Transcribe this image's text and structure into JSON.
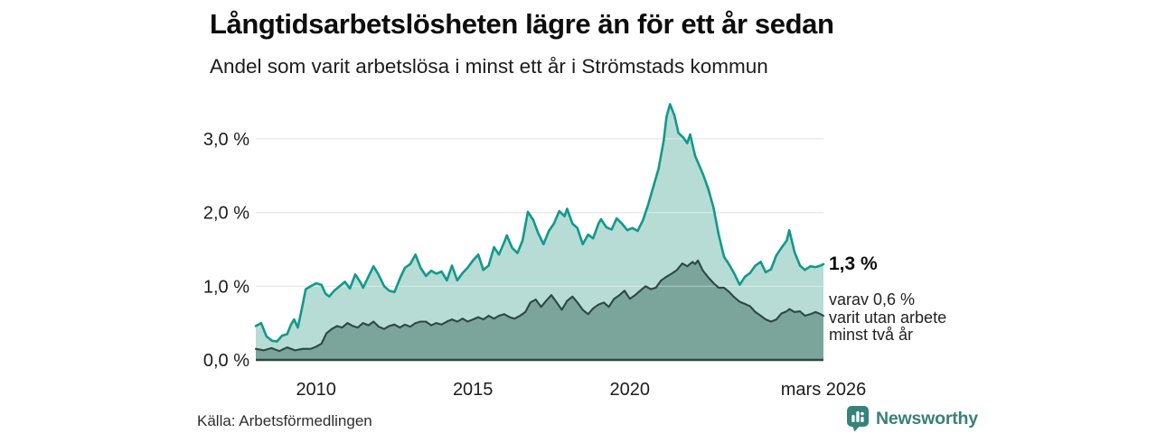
{
  "title": "Långtidsarbetslösheten lägre än för ett år sedan",
  "subtitle": "Andel som varit arbetslösa i minst ett år i Strömstads kommun",
  "source": "Källa: Arbetsförmedlingen",
  "branding": {
    "name": "Newsworthy",
    "icon_color": "#35837b",
    "text_color": "#3a7f79"
  },
  "annotations": {
    "latest_value": "1,3 %",
    "secondary_line1": "varav 0,6 %",
    "secondary_line2": "varit utan arbete",
    "secondary_line3": "minst två år"
  },
  "colors": {
    "long_term_line": "#11998a",
    "long_term_fill": "#b7dcd5",
    "very_long_term_line": "#2c4843",
    "very_long_term_fill": "#7ba49b",
    "gridline": "#d9d9d9",
    "gridline_over_fill": "rgba(255,255,255,0.4)",
    "axis_line": "#2c4843",
    "tick_text": "#1c1c1c"
  },
  "chart_data": {
    "type": "area",
    "title": "Långtidsarbetslösheten lägre än för ett år sedan",
    "subtitle": "Andel som varit arbetslösa i minst ett år i Strömstads kommun",
    "unit": "%",
    "xlim": [
      2008.08,
      2026.17
    ],
    "ylim": [
      0,
      3.55
    ],
    "grid": true,
    "legend_position": "annotated-right",
    "yticks": [
      {
        "value": 0,
        "label": "0,0 %"
      },
      {
        "value": 1,
        "label": "1,0 %"
      },
      {
        "value": 2,
        "label": "2,0 %"
      },
      {
        "value": 3,
        "label": "3,0 %"
      }
    ],
    "xticks": [
      {
        "value": 2010,
        "label": "2010"
      },
      {
        "value": 2015,
        "label": "2015"
      },
      {
        "value": 2020,
        "label": "2020"
      },
      {
        "value": 2026.17,
        "label": "mars 2026"
      }
    ],
    "series": [
      {
        "name": "Andel som varit arbetslösa i minst ett år",
        "latest_label": "1,3 %",
        "points": [
          [
            2008.08,
            0.46
          ],
          [
            2008.25,
            0.5
          ],
          [
            2008.42,
            0.32
          ],
          [
            2008.6,
            0.26
          ],
          [
            2008.75,
            0.25
          ],
          [
            2008.92,
            0.33
          ],
          [
            2009.08,
            0.35
          ],
          [
            2009.2,
            0.48
          ],
          [
            2009.3,
            0.55
          ],
          [
            2009.42,
            0.44
          ],
          [
            2009.55,
            0.7
          ],
          [
            2009.67,
            0.96
          ],
          [
            2009.83,
            1.0
          ],
          [
            2010.0,
            1.04
          ],
          [
            2010.17,
            1.02
          ],
          [
            2010.3,
            0.9
          ],
          [
            2010.42,
            0.86
          ],
          [
            2010.58,
            0.94
          ],
          [
            2010.75,
            1.0
          ],
          [
            2010.92,
            1.06
          ],
          [
            2011.08,
            0.97
          ],
          [
            2011.25,
            1.16
          ],
          [
            2011.42,
            1.05
          ],
          [
            2011.5,
            0.98
          ],
          [
            2011.67,
            1.13
          ],
          [
            2011.83,
            1.27
          ],
          [
            2012.0,
            1.15
          ],
          [
            2012.17,
            1.0
          ],
          [
            2012.33,
            0.94
          ],
          [
            2012.5,
            0.92
          ],
          [
            2012.67,
            1.1
          ],
          [
            2012.83,
            1.25
          ],
          [
            2013.0,
            1.3
          ],
          [
            2013.17,
            1.43
          ],
          [
            2013.33,
            1.25
          ],
          [
            2013.5,
            1.14
          ],
          [
            2013.67,
            1.21
          ],
          [
            2013.83,
            1.17
          ],
          [
            2014.0,
            1.2
          ],
          [
            2014.17,
            1.08
          ],
          [
            2014.33,
            1.28
          ],
          [
            2014.5,
            1.08
          ],
          [
            2014.67,
            1.18
          ],
          [
            2014.83,
            1.25
          ],
          [
            2015.0,
            1.35
          ],
          [
            2015.17,
            1.43
          ],
          [
            2015.33,
            1.22
          ],
          [
            2015.5,
            1.28
          ],
          [
            2015.67,
            1.53
          ],
          [
            2015.83,
            1.43
          ],
          [
            2016.0,
            1.6
          ],
          [
            2016.08,
            1.69
          ],
          [
            2016.25,
            1.52
          ],
          [
            2016.42,
            1.45
          ],
          [
            2016.58,
            1.62
          ],
          [
            2016.75,
            2.01
          ],
          [
            2016.92,
            1.9
          ],
          [
            2017.08,
            1.72
          ],
          [
            2017.25,
            1.57
          ],
          [
            2017.42,
            1.75
          ],
          [
            2017.58,
            1.85
          ],
          [
            2017.75,
            2.02
          ],
          [
            2017.92,
            1.95
          ],
          [
            2018.0,
            2.05
          ],
          [
            2018.17,
            1.85
          ],
          [
            2018.33,
            1.79
          ],
          [
            2018.5,
            1.57
          ],
          [
            2018.67,
            1.7
          ],
          [
            2018.83,
            1.65
          ],
          [
            2019.0,
            1.85
          ],
          [
            2019.08,
            1.91
          ],
          [
            2019.25,
            1.8
          ],
          [
            2019.42,
            1.77
          ],
          [
            2019.58,
            1.92
          ],
          [
            2019.75,
            1.85
          ],
          [
            2019.92,
            1.76
          ],
          [
            2020.08,
            1.79
          ],
          [
            2020.25,
            1.75
          ],
          [
            2020.42,
            1.9
          ],
          [
            2020.58,
            2.1
          ],
          [
            2020.75,
            2.35
          ],
          [
            2020.92,
            2.6
          ],
          [
            2021.08,
            2.98
          ],
          [
            2021.17,
            3.3
          ],
          [
            2021.28,
            3.47
          ],
          [
            2021.42,
            3.32
          ],
          [
            2021.55,
            3.08
          ],
          [
            2021.7,
            3.02
          ],
          [
            2021.83,
            2.94
          ],
          [
            2021.92,
            3.06
          ],
          [
            2022.08,
            2.77
          ],
          [
            2022.2,
            2.65
          ],
          [
            2022.33,
            2.52
          ],
          [
            2022.5,
            2.32
          ],
          [
            2022.67,
            2.06
          ],
          [
            2022.83,
            1.7
          ],
          [
            2023.0,
            1.4
          ],
          [
            2023.17,
            1.29
          ],
          [
            2023.33,
            1.17
          ],
          [
            2023.5,
            1.02
          ],
          [
            2023.67,
            1.13
          ],
          [
            2023.83,
            1.18
          ],
          [
            2024.0,
            1.28
          ],
          [
            2024.17,
            1.33
          ],
          [
            2024.33,
            1.19
          ],
          [
            2024.5,
            1.23
          ],
          [
            2024.67,
            1.42
          ],
          [
            2024.83,
            1.52
          ],
          [
            2025.0,
            1.62
          ],
          [
            2025.08,
            1.76
          ],
          [
            2025.25,
            1.46
          ],
          [
            2025.42,
            1.28
          ],
          [
            2025.58,
            1.22
          ],
          [
            2025.75,
            1.27
          ],
          [
            2025.92,
            1.26
          ],
          [
            2026.08,
            1.28
          ],
          [
            2026.17,
            1.3
          ]
        ]
      },
      {
        "name": "varav utan arbete minst två år",
        "latest_label": "0,6 %",
        "points": [
          [
            2008.08,
            0.15
          ],
          [
            2008.33,
            0.13
          ],
          [
            2008.58,
            0.16
          ],
          [
            2008.83,
            0.12
          ],
          [
            2009.08,
            0.17
          ],
          [
            2009.33,
            0.13
          ],
          [
            2009.58,
            0.15
          ],
          [
            2009.83,
            0.15
          ],
          [
            2010.0,
            0.18
          ],
          [
            2010.17,
            0.22
          ],
          [
            2010.33,
            0.36
          ],
          [
            2010.5,
            0.42
          ],
          [
            2010.67,
            0.46
          ],
          [
            2010.83,
            0.44
          ],
          [
            2011.0,
            0.5
          ],
          [
            2011.17,
            0.46
          ],
          [
            2011.33,
            0.44
          ],
          [
            2011.5,
            0.5
          ],
          [
            2011.67,
            0.47
          ],
          [
            2011.83,
            0.52
          ],
          [
            2012.0,
            0.45
          ],
          [
            2012.17,
            0.42
          ],
          [
            2012.33,
            0.46
          ],
          [
            2012.5,
            0.48
          ],
          [
            2012.67,
            0.44
          ],
          [
            2012.83,
            0.48
          ],
          [
            2013.0,
            0.45
          ],
          [
            2013.17,
            0.5
          ],
          [
            2013.33,
            0.52
          ],
          [
            2013.5,
            0.52
          ],
          [
            2013.67,
            0.47
          ],
          [
            2013.83,
            0.5
          ],
          [
            2014.0,
            0.48
          ],
          [
            2014.17,
            0.52
          ],
          [
            2014.33,
            0.55
          ],
          [
            2014.5,
            0.52
          ],
          [
            2014.67,
            0.56
          ],
          [
            2014.83,
            0.52
          ],
          [
            2015.0,
            0.55
          ],
          [
            2015.17,
            0.58
          ],
          [
            2015.33,
            0.55
          ],
          [
            2015.5,
            0.6
          ],
          [
            2015.67,
            0.56
          ],
          [
            2015.83,
            0.6
          ],
          [
            2016.0,
            0.62
          ],
          [
            2016.17,
            0.58
          ],
          [
            2016.33,
            0.56
          ],
          [
            2016.5,
            0.6
          ],
          [
            2016.67,
            0.65
          ],
          [
            2016.83,
            0.78
          ],
          [
            2017.0,
            0.82
          ],
          [
            2017.17,
            0.72
          ],
          [
            2017.33,
            0.8
          ],
          [
            2017.5,
            0.88
          ],
          [
            2017.67,
            0.78
          ],
          [
            2017.83,
            0.68
          ],
          [
            2018.0,
            0.8
          ],
          [
            2018.17,
            0.86
          ],
          [
            2018.33,
            0.78
          ],
          [
            2018.5,
            0.68
          ],
          [
            2018.67,
            0.62
          ],
          [
            2018.83,
            0.7
          ],
          [
            2019.0,
            0.75
          ],
          [
            2019.17,
            0.78
          ],
          [
            2019.33,
            0.72
          ],
          [
            2019.5,
            0.83
          ],
          [
            2019.67,
            0.88
          ],
          [
            2019.83,
            0.94
          ],
          [
            2020.0,
            0.83
          ],
          [
            2020.17,
            0.88
          ],
          [
            2020.33,
            0.94
          ],
          [
            2020.5,
            1.0
          ],
          [
            2020.67,
            0.96
          ],
          [
            2020.83,
            0.98
          ],
          [
            2021.0,
            1.08
          ],
          [
            2021.17,
            1.13
          ],
          [
            2021.33,
            1.17
          ],
          [
            2021.5,
            1.22
          ],
          [
            2021.67,
            1.31
          ],
          [
            2021.83,
            1.27
          ],
          [
            2022.0,
            1.33
          ],
          [
            2022.08,
            1.3
          ],
          [
            2022.17,
            1.35
          ],
          [
            2022.33,
            1.21
          ],
          [
            2022.5,
            1.12
          ],
          [
            2022.67,
            1.04
          ],
          [
            2022.83,
            0.98
          ],
          [
            2023.0,
            0.98
          ],
          [
            2023.17,
            0.92
          ],
          [
            2023.33,
            0.85
          ],
          [
            2023.5,
            0.79
          ],
          [
            2023.67,
            0.76
          ],
          [
            2023.83,
            0.73
          ],
          [
            2024.0,
            0.65
          ],
          [
            2024.17,
            0.6
          ],
          [
            2024.33,
            0.55
          ],
          [
            2024.5,
            0.52
          ],
          [
            2024.67,
            0.55
          ],
          [
            2024.83,
            0.63
          ],
          [
            2025.0,
            0.66
          ],
          [
            2025.08,
            0.69
          ],
          [
            2025.25,
            0.65
          ],
          [
            2025.42,
            0.66
          ],
          [
            2025.58,
            0.6
          ],
          [
            2025.75,
            0.62
          ],
          [
            2025.92,
            0.65
          ],
          [
            2026.08,
            0.62
          ],
          [
            2026.17,
            0.6
          ]
        ]
      }
    ]
  }
}
